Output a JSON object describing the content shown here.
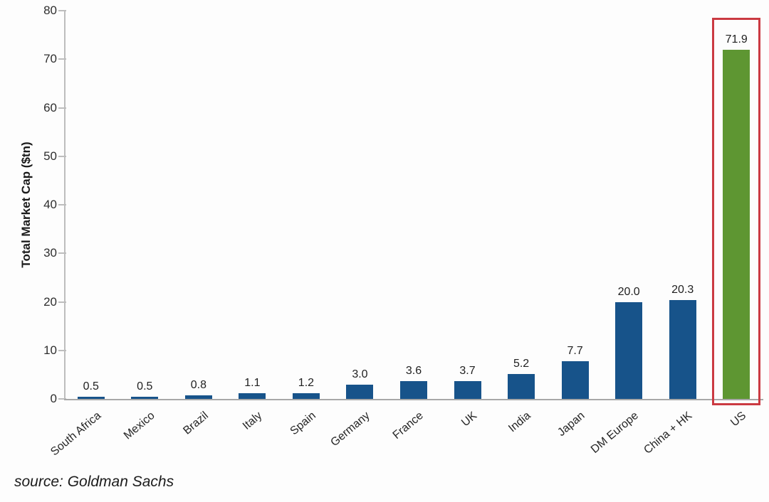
{
  "chart_data": {
    "type": "bar",
    "categories": [
      "South Africa",
      "Mexico",
      "Brazil",
      "Italy",
      "Spain",
      "Germany",
      "France",
      "UK",
      "India",
      "Japan",
      "DM Europe",
      "China + HK",
      "US"
    ],
    "values": [
      0.5,
      0.5,
      0.8,
      1.1,
      1.2,
      3.0,
      3.6,
      3.7,
      5.2,
      7.7,
      20.0,
      20.3,
      71.9
    ],
    "value_labels": [
      "0.5",
      "0.5",
      "0.8",
      "1.1",
      "1.2",
      "3.0",
      "3.6",
      "3.7",
      "5.2",
      "7.7",
      "20.0",
      "20.3",
      "71.9"
    ],
    "title": "",
    "xlabel": "",
    "ylabel": "Total Market Cap ($tn)",
    "ylim": [
      0,
      80
    ],
    "yticks": [
      0,
      10,
      20,
      30,
      40,
      50,
      60,
      70,
      80
    ],
    "grid": false,
    "legend_position": "none",
    "bar_color": "#17538a",
    "highlight": {
      "category": "US",
      "bar_color": "#5e9632",
      "box_color": "#cb3a42"
    }
  },
  "footer": {
    "source": "source: Goldman Sachs"
  }
}
